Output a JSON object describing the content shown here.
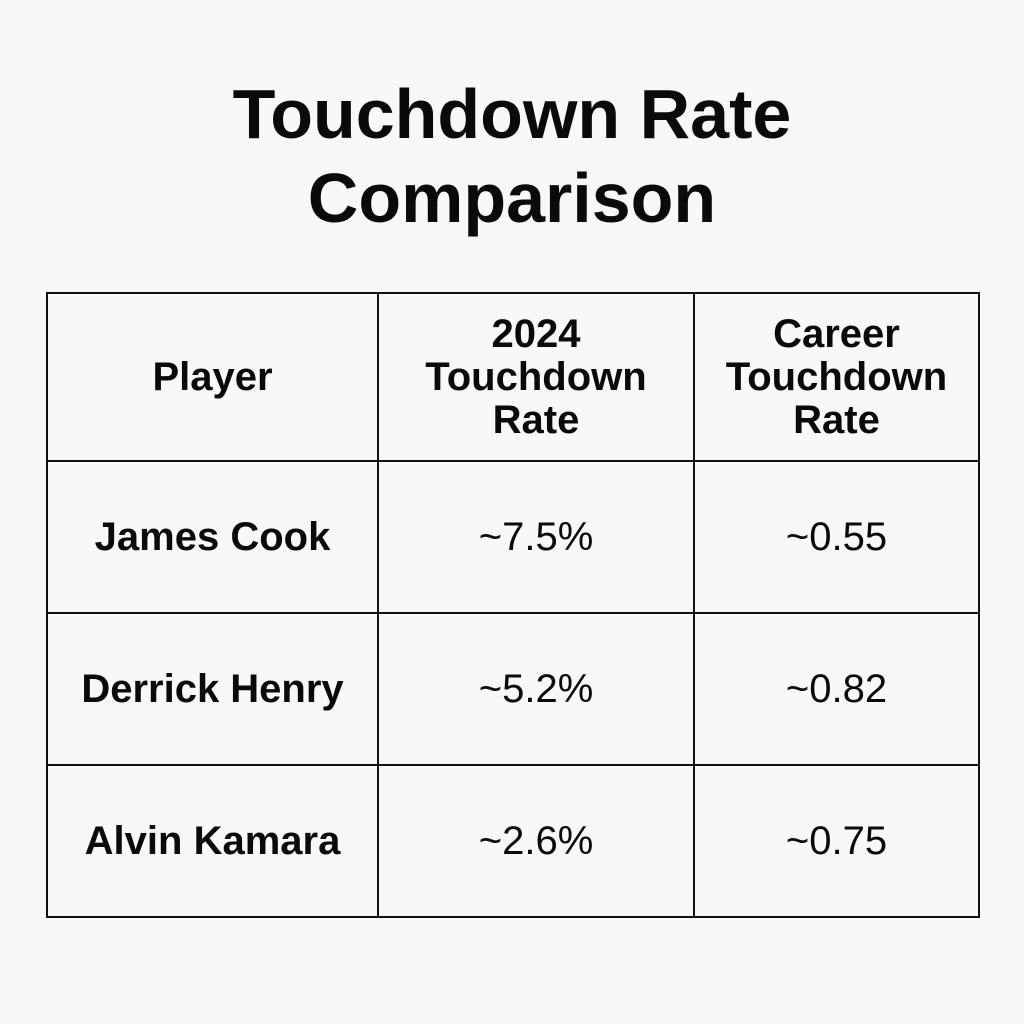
{
  "title": {
    "line1": "Touchdown Rate",
    "line2": "Comparison"
  },
  "table": {
    "headers": [
      {
        "lines": [
          "Player"
        ]
      },
      {
        "lines": [
          "2024",
          "Touchdown",
          "Rate"
        ]
      },
      {
        "lines": [
          "Career",
          "Touchdown",
          "Rate"
        ]
      }
    ],
    "rows": [
      {
        "player": "James Cook",
        "rate_2024": "~7.5%",
        "career_rate": "~0.55"
      },
      {
        "player": "Derrick Henry",
        "rate_2024": "~5.2%",
        "career_rate": "~0.82"
      },
      {
        "player": "Alvin Kamara",
        "rate_2024": "~2.6%",
        "career_rate": "~0.75"
      }
    ]
  }
}
